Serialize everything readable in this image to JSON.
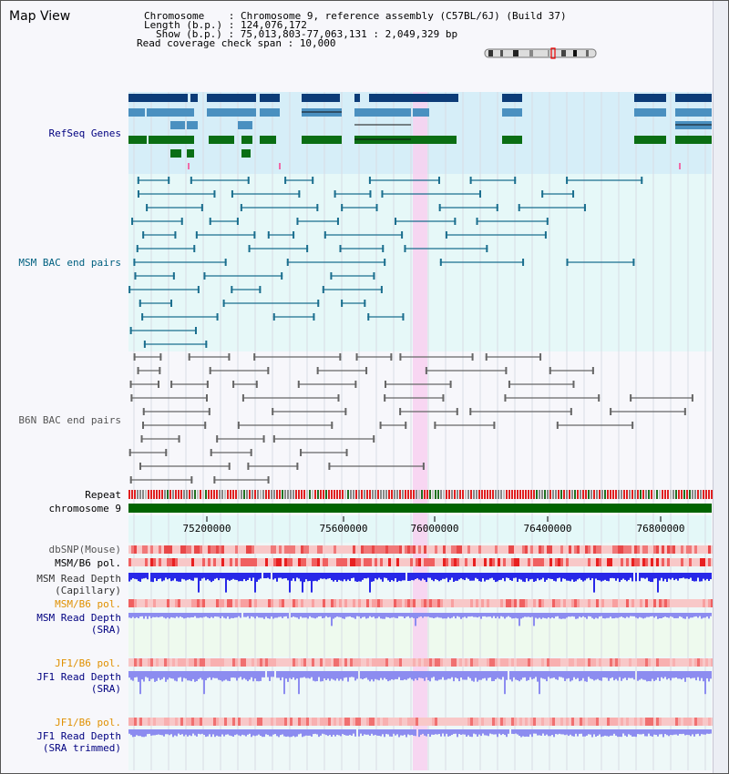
{
  "app": {
    "title": "Map View"
  },
  "info": {
    "chromosome_label": "Chromosome    :",
    "chromosome_value": "Chromosome 9, reference assembly (C57BL/6J) (Build 37)",
    "length_label": "Length (b.p.) :",
    "length_value": "124,076,172",
    "show_label": "Show (b.p.) :",
    "show_value": "75,013,803-77,063,131 : 2,049,329 bp",
    "coverage_label": "Read coverage check span :",
    "coverage_value": "10,000"
  },
  "tracks": {
    "refseq": "RefSeq Genes",
    "msm_bac": "MSM BAC end pairs",
    "b6n_bac": "B6N BAC end pairs",
    "repeat": "Repeat",
    "chromosome": "chromosome 9",
    "dbsnp": "dbSNP(Mouse)",
    "msm_b6_pol": "MSM/B6 pol.",
    "msm_depth_cap_1": "MSM Read Depth",
    "msm_depth_cap_2": "(Capillary)",
    "msm_b6_pol_2": "MSM/B6 pol.",
    "msm_depth_sra_1": "MSM Read Depth",
    "msm_depth_sra_2": "(SRA)",
    "jf1_b6_pol": "JF1/B6 pol.",
    "jf1_depth_sra_1": "JF1 Read Depth",
    "jf1_depth_sra_2": "(SRA)",
    "jf1_b6_pol_2": "JF1/B6 pol.",
    "jf1_depth_trim_1": "JF1 Read Depth",
    "jf1_depth_trim_2": "(SRA trimmed)"
  },
  "axis": {
    "ticks": [
      "75200000",
      "75600000",
      "76000000",
      "76400000",
      "76800000"
    ]
  },
  "colors": {
    "refseq_bg": "#d6eef8",
    "msm_bg": "#e6f8f8",
    "highlight": "#f8d0f0",
    "gene_dark": "#0c3c78",
    "gene_mid": "#4a90c0",
    "gene_green": "#0a6e14",
    "msm_line": "#1a6e8e",
    "b6n_line": "#666666",
    "depth_blue": "#2828e8",
    "depth_light": "#8c8cf0",
    "pol_red": "#e82020",
    "pol_label_orange": "#e09000",
    "label_navy": "#000080",
    "label_teal": "#006080"
  }
}
